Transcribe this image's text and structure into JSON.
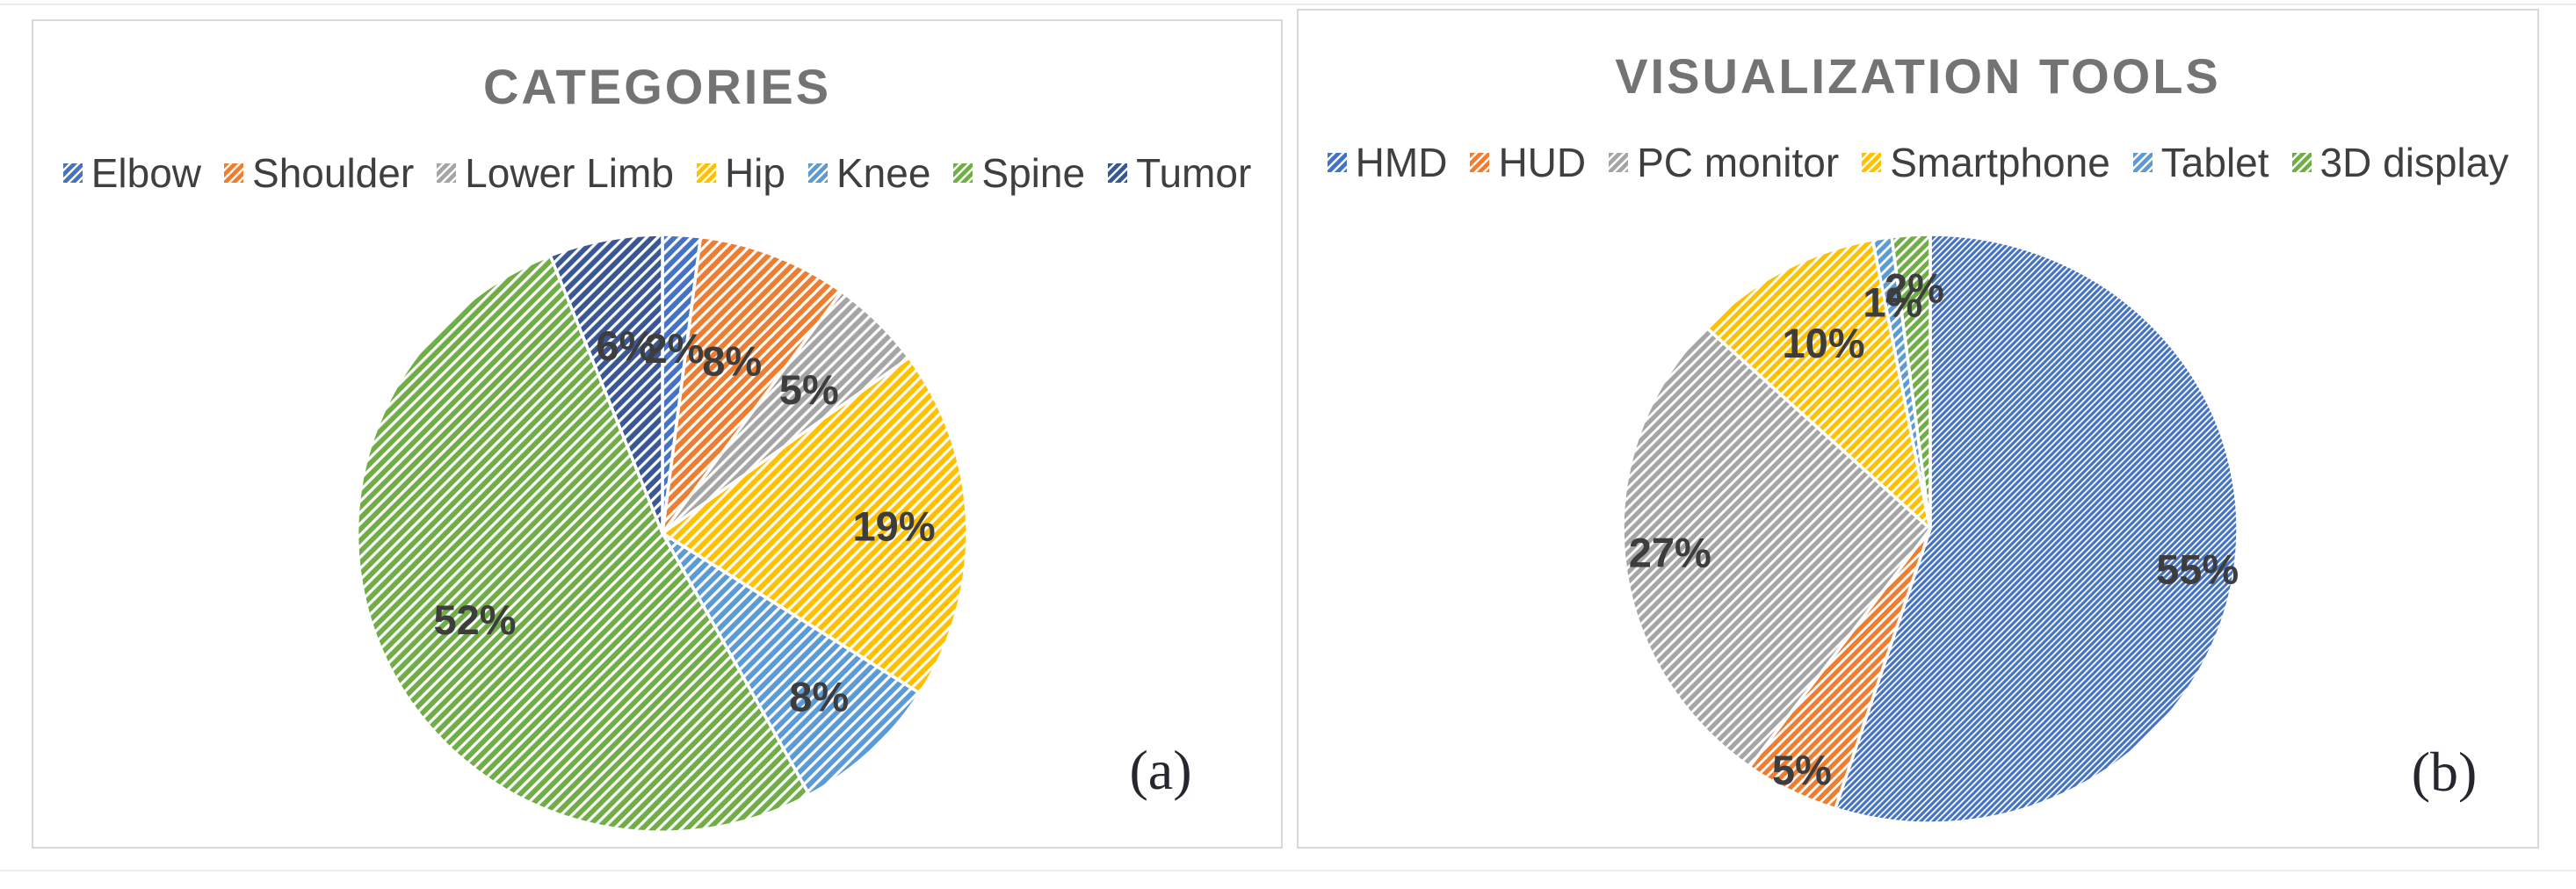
{
  "page": {
    "background": "#ffffff",
    "border_color": "#d9d9d9"
  },
  "chart_data": [
    {
      "type": "pie",
      "title": "CATEGORIES",
      "caption": "(a)",
      "categories": [
        "Elbow",
        "Shoulder",
        "Lower Limb",
        "Hip",
        "Knee",
        "Spine",
        "Tumor"
      ],
      "values": [
        2,
        8,
        5,
        19,
        8,
        52,
        6
      ],
      "labels": [
        "2%",
        "8%",
        "5%",
        "19%",
        "8%",
        "52%",
        "6%"
      ],
      "colors": [
        "#4472C4",
        "#ED7D31",
        "#A5A5A5",
        "#FFC000",
        "#5B9BD5",
        "#70AD47",
        "#3A5795"
      ],
      "start_angle_deg": 0,
      "direction": "clockwise",
      "legend_position": "top",
      "hatch": {
        "style": "diagonal-up",
        "angle_deg": 45,
        "pitch": [
          9,
          9,
          9,
          9,
          9,
          9,
          9
        ]
      },
      "label_radius": [
        0.62,
        0.62,
        0.68,
        0.76,
        0.75,
        0.68,
        0.64
      ],
      "title_color": "#737373",
      "label_color": "#3d3d3d",
      "slice_separator_color": "#ffffff"
    },
    {
      "type": "pie",
      "title": "VISUALIZATION TOOLS",
      "caption": "(b)",
      "categories": [
        "HMD",
        "HUD",
        "PC monitor",
        "Smartphone",
        "Tablet",
        "3D display"
      ],
      "values": [
        55,
        5,
        27,
        10,
        1,
        2
      ],
      "labels": [
        "55%",
        "5%",
        "27%",
        "10%",
        "1%",
        "2%"
      ],
      "colors": [
        "#4472C4",
        "#ED7D31",
        "#A5A5A5",
        "#FFC000",
        "#5B9BD5",
        "#70AD47"
      ],
      "start_angle_deg": 0,
      "direction": "clockwise",
      "legend_position": "top",
      "hatch": {
        "style": "diagonal-up",
        "angle_deg": 45,
        "pitch": [
          5,
          8,
          8,
          8,
          8,
          8
        ]
      },
      "label_radius": [
        0.88,
        0.92,
        0.85,
        0.72,
        0.78,
        0.82
      ],
      "title_color": "#737373",
      "label_color": "#3d3d3d",
      "slice_separator_color": "#ffffff"
    }
  ]
}
